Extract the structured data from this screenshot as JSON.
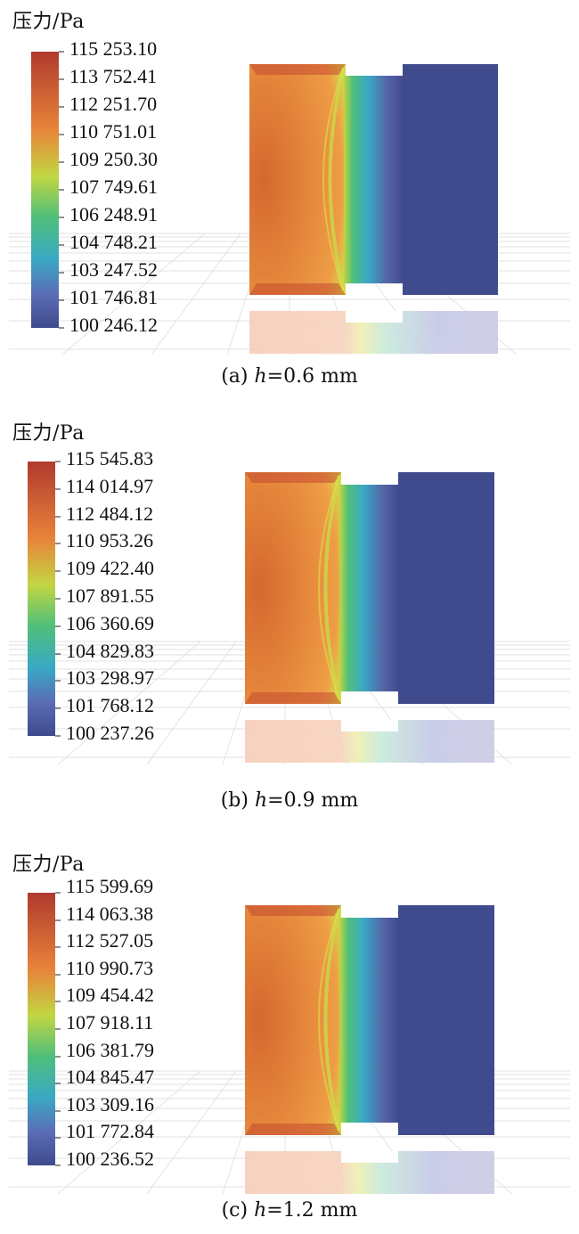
{
  "panels": [
    {
      "unit_label": "压力/Pa",
      "colorbar_ticks": [
        "115 253.10",
        "113 752.41",
        "112 251.70",
        "110 751.01",
        "109 250.30",
        "107 749.61",
        "106 248.91",
        "104 748.21",
        "103 247.52",
        "101 746.81",
        "100 246.12"
      ],
      "caption_prefix": "(a) ",
      "caption_var": "h",
      "caption_value": "=0.6 mm"
    },
    {
      "unit_label": "压力/Pa",
      "colorbar_ticks": [
        "115 545.83",
        "114 014.97",
        "112 484.12",
        "110 953.26",
        "109 422.40",
        "107 891.55",
        "106 360.69",
        "104 829.83",
        "103 298.97",
        "101 768.12",
        "100 237.26"
      ],
      "caption_prefix": "(b) ",
      "caption_var": "h",
      "caption_value": "=0.9 mm"
    },
    {
      "unit_label": "压力/Pa",
      "colorbar_ticks": [
        "115 599.69",
        "114 063.38",
        "112 527.05",
        "110 990.73",
        "109 454.42",
        "107 918.11",
        "106 381.79",
        "104 845.47",
        "103 309.16",
        "101 772.84",
        "100 236.52"
      ],
      "caption_prefix": "(c) ",
      "caption_var": "h",
      "caption_value": "=1.2 mm"
    }
  ],
  "colors": {
    "max": "#b03a2e",
    "orange": "#e8833a",
    "yellow_green": "#c2d642",
    "green": "#4fbf7a",
    "cyan": "#3aa9c4",
    "min": "#3f4a8c"
  }
}
